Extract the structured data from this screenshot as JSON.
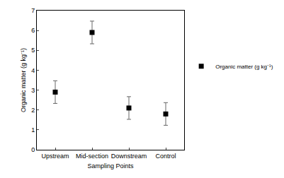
{
  "chart_data": {
    "type": "scatter",
    "x_label": "Sampling Points",
    "y_label": "Organic matter (g kg⁻¹)",
    "categories": [
      "Upstream",
      "Mid-section",
      "Downstream",
      "Control"
    ],
    "series": [
      {
        "name": "Organic matter (g kg⁻¹)",
        "color": "#000000",
        "marker": "square",
        "values": [
          2.9,
          5.9,
          2.1,
          1.8
        ],
        "errors": [
          0.57,
          0.57,
          0.57,
          0.57
        ]
      }
    ],
    "ylim": [
      0,
      7
    ],
    "yticks": [
      0,
      1,
      2,
      3,
      4,
      5,
      6,
      7
    ],
    "grid": false,
    "legend": "right"
  }
}
